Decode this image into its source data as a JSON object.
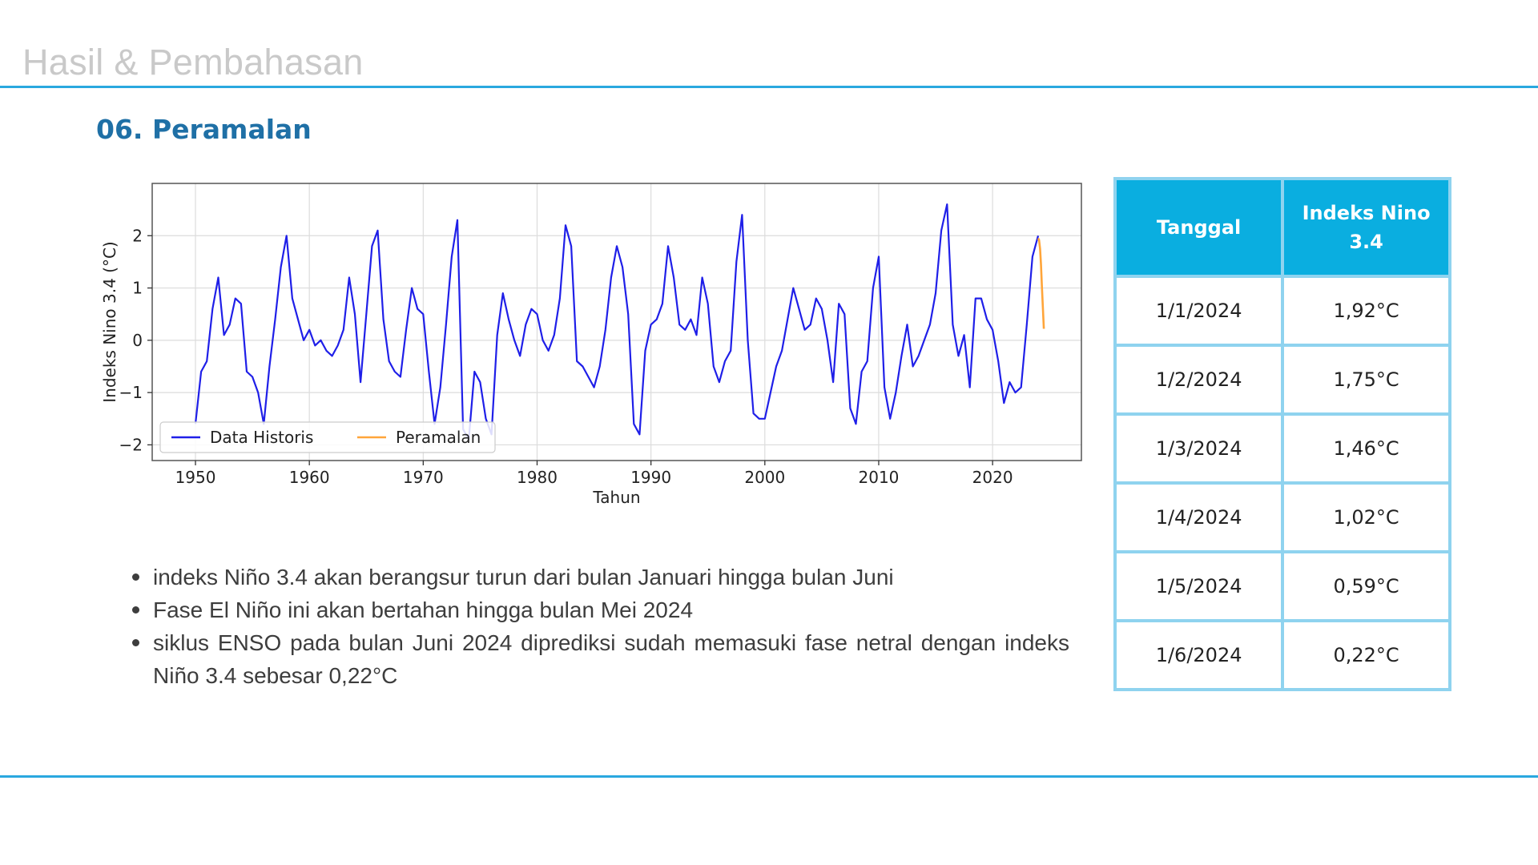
{
  "header": {
    "title": "Hasil & Pembahasan"
  },
  "section": {
    "title": "06. Peramalan"
  },
  "chart_data": {
    "type": "line",
    "xlabel": "Tahun",
    "ylabel": "Indeks Nino 3.4 (°C)",
    "xlim": [
      1946.2,
      2027.8
    ],
    "ylim": [
      -2.3,
      3.0
    ],
    "xticks": [
      1950,
      1960,
      1970,
      1980,
      1990,
      2000,
      2010,
      2020
    ],
    "yticks": [
      2,
      1,
      0,
      -1,
      -2
    ],
    "ytick_labels": [
      "2",
      "1",
      "0",
      "−1",
      "−2"
    ],
    "grid": true,
    "legend": "lower-left",
    "series": [
      {
        "name": "Data Historis",
        "color": "#1f1fe8",
        "x": [
          1950.0,
          1950.5,
          1951.0,
          1951.5,
          1952.0,
          1952.5,
          1953.0,
          1953.5,
          1954.0,
          1954.5,
          1955.0,
          1955.5,
          1956.0,
          1956.5,
          1957.0,
          1957.5,
          1958.0,
          1958.5,
          1959.0,
          1959.5,
          1960.0,
          1960.5,
          1961.0,
          1961.5,
          1962.0,
          1962.5,
          1963.0,
          1963.5,
          1964.0,
          1964.5,
          1965.0,
          1965.5,
          1966.0,
          1966.5,
          1967.0,
          1967.5,
          1968.0,
          1968.5,
          1969.0,
          1969.5,
          1970.0,
          1970.5,
          1971.0,
          1971.5,
          1972.0,
          1972.5,
          1973.0,
          1973.5,
          1974.0,
          1974.5,
          1975.0,
          1975.5,
          1976.0,
          1976.5,
          1977.0,
          1977.5,
          1978.0,
          1978.5,
          1979.0,
          1979.5,
          1980.0,
          1980.5,
          1981.0,
          1981.5,
          1982.0,
          1982.5,
          1983.0,
          1983.5,
          1984.0,
          1984.5,
          1985.0,
          1985.5,
          1986.0,
          1986.5,
          1987.0,
          1987.5,
          1988.0,
          1988.5,
          1989.0,
          1989.5,
          1990.0,
          1990.5,
          1991.0,
          1991.5,
          1992.0,
          1992.5,
          1993.0,
          1993.5,
          1994.0,
          1994.5,
          1995.0,
          1995.5,
          1996.0,
          1996.5,
          1997.0,
          1997.5,
          1998.0,
          1998.5,
          1999.0,
          1999.5,
          2000.0,
          2000.5,
          2001.0,
          2001.5,
          2002.0,
          2002.5,
          2003.0,
          2003.5,
          2004.0,
          2004.5,
          2005.0,
          2005.5,
          2006.0,
          2006.5,
          2007.0,
          2007.5,
          2008.0,
          2008.5,
          2009.0,
          2009.5,
          2010.0,
          2010.5,
          2011.0,
          2011.5,
          2012.0,
          2012.5,
          2013.0,
          2013.5,
          2014.0,
          2014.5,
          2015.0,
          2015.5,
          2016.0,
          2016.5,
          2017.0,
          2017.5,
          2018.0,
          2018.5,
          2019.0,
          2019.5,
          2020.0,
          2020.5,
          2021.0,
          2021.5,
          2022.0,
          2022.5,
          2023.0,
          2023.5,
          2024.0
        ],
        "y": [
          -1.6,
          -0.6,
          -0.4,
          0.6,
          1.2,
          0.1,
          0.3,
          0.8,
          0.7,
          -0.6,
          -0.7,
          -1.0,
          -1.6,
          -0.5,
          0.4,
          1.4,
          2.0,
          0.8,
          0.4,
          0.0,
          0.2,
          -0.1,
          0.0,
          -0.2,
          -0.3,
          -0.1,
          0.2,
          1.2,
          0.5,
          -0.8,
          0.5,
          1.8,
          2.1,
          0.4,
          -0.4,
          -0.6,
          -0.7,
          0.2,
          1.0,
          0.6,
          0.5,
          -0.6,
          -1.6,
          -0.9,
          0.3,
          1.6,
          2.3,
          -1.7,
          -1.9,
          -0.6,
          -0.8,
          -1.5,
          -1.8,
          0.1,
          0.9,
          0.4,
          0.0,
          -0.3,
          0.3,
          0.6,
          0.5,
          0.0,
          -0.2,
          0.1,
          0.8,
          2.2,
          1.8,
          -0.4,
          -0.5,
          -0.7,
          -0.9,
          -0.5,
          0.2,
          1.2,
          1.8,
          1.4,
          0.5,
          -1.6,
          -1.8,
          -0.2,
          0.3,
          0.4,
          0.7,
          1.8,
          1.2,
          0.3,
          0.2,
          0.4,
          0.1,
          1.2,
          0.7,
          -0.5,
          -0.8,
          -0.4,
          -0.2,
          1.5,
          2.4,
          0.0,
          -1.4,
          -1.5,
          -1.5,
          -1.0,
          -0.5,
          -0.2,
          0.4,
          1.0,
          0.6,
          0.2,
          0.3,
          0.8,
          0.6,
          0.0,
          -0.8,
          0.7,
          0.5,
          -1.3,
          -1.6,
          -0.6,
          -0.4,
          1.0,
          1.6,
          -0.9,
          -1.5,
          -1.0,
          -0.3,
          0.3,
          -0.5,
          -0.3,
          0.0,
          0.3,
          0.9,
          2.1,
          2.6,
          0.3,
          -0.3,
          0.1,
          -0.9,
          0.8,
          0.8,
          0.4,
          0.2,
          -0.4,
          -1.2,
          -0.8,
          -1.0,
          -0.9,
          0.3,
          1.6,
          2.0
        ]
      },
      {
        "name": "Peramalan",
        "color": "#ffa53a",
        "x": [
          2024.0,
          2024.08,
          2024.17,
          2024.25,
          2024.33,
          2024.42,
          2024.5
        ],
        "y": [
          1.95,
          1.92,
          1.75,
          1.46,
          1.02,
          0.59,
          0.22
        ]
      }
    ]
  },
  "bullets": [
    "indeks Niño 3.4 akan berangsur turun dari bulan Januari hingga bulan Juni",
    "Fase El Niño ini akan bertahan hingga bulan Mei 2024",
    "siklus ENSO pada bulan Juni 2024 diprediksi sudah memasuki fase netral dengan indeks Niño 3.4 sebesar 0,22°C"
  ],
  "table": {
    "headers": [
      "Tanggal",
      "Indeks Nino 3.4"
    ],
    "rows": [
      [
        "1/1/2024",
        "1,92°C"
      ],
      [
        "1/2/2024",
        "1,75°C"
      ],
      [
        "1/3/2024",
        "1,46°C"
      ],
      [
        "1/4/2024",
        "1,02°C"
      ],
      [
        "1/5/2024",
        "0,59°C"
      ],
      [
        "1/6/2024",
        "0,22°C"
      ]
    ]
  }
}
